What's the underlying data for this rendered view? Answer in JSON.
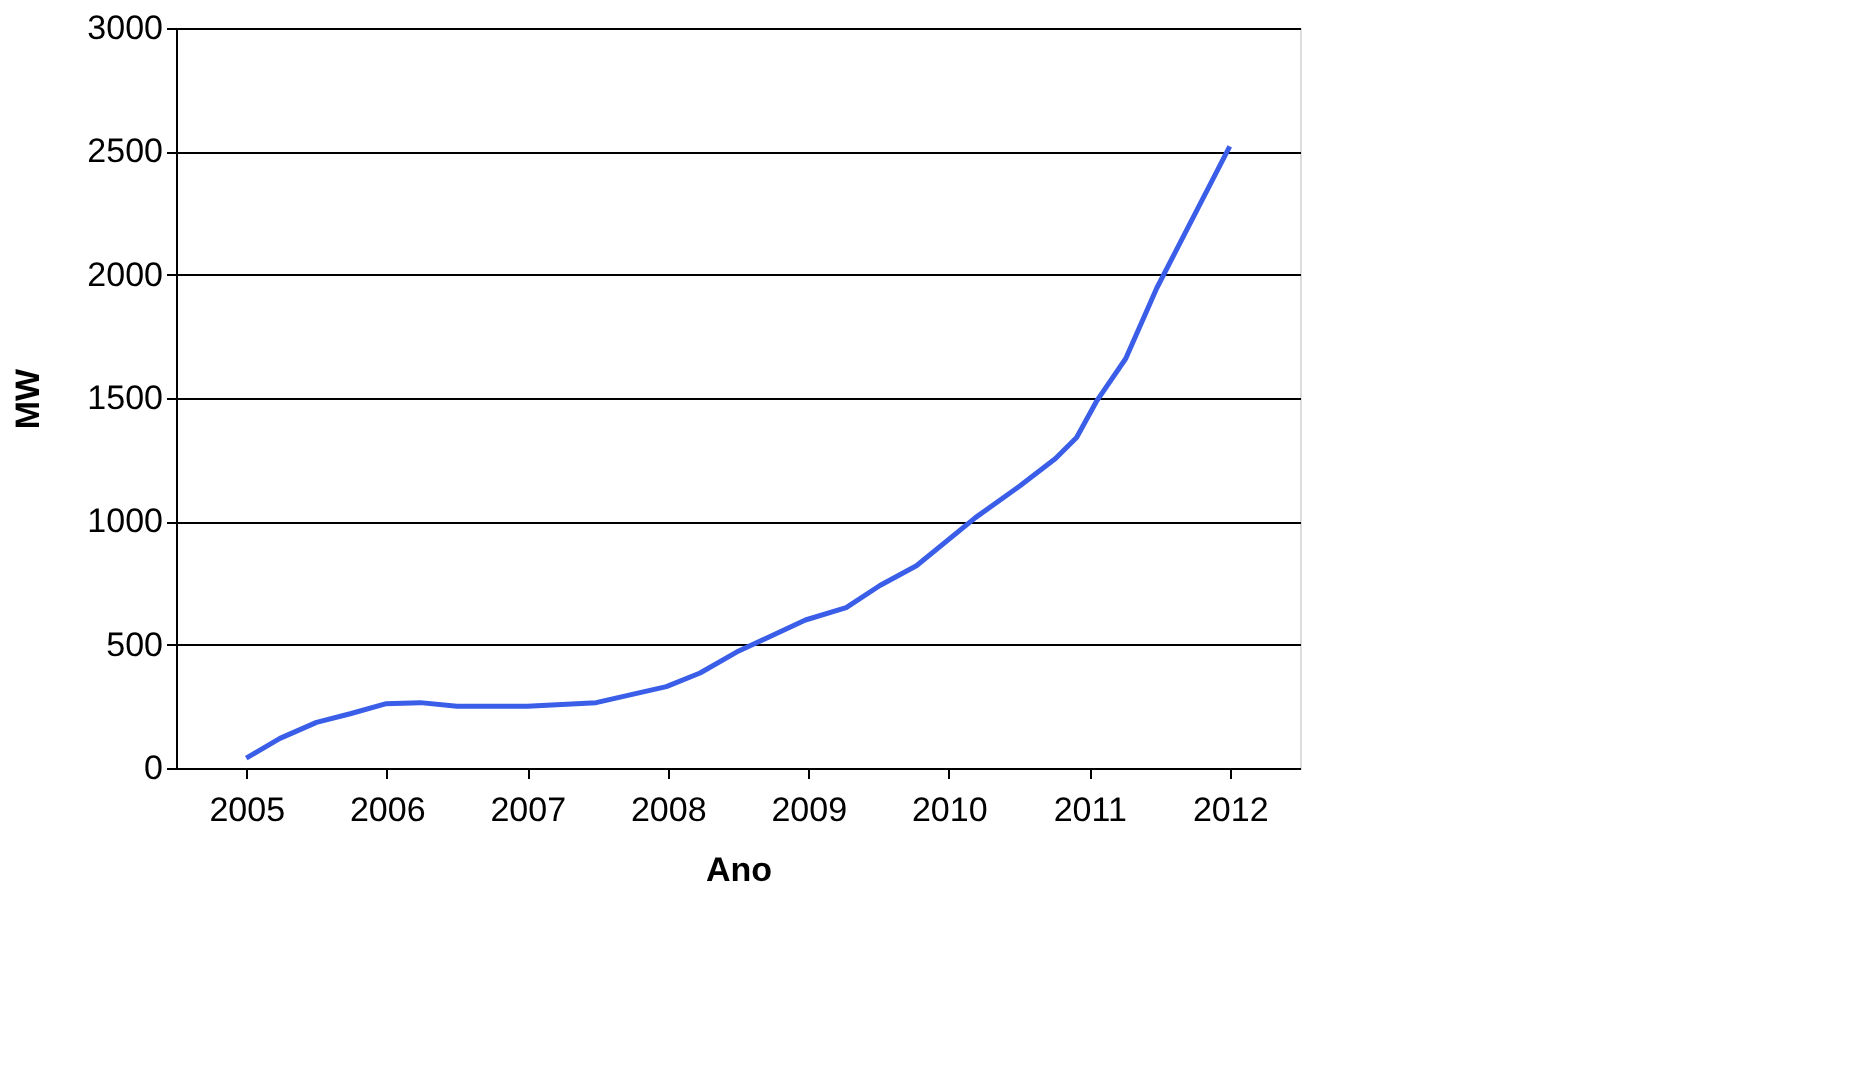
{
  "chart_data": {
    "type": "line",
    "xlabel": "Ano",
    "ylabel": "MW",
    "x": [
      2005.0,
      2005.24,
      2005.5,
      2005.74,
      2005.99,
      2006.24,
      2006.5,
      2007.0,
      2007.49,
      2007.99,
      2008.23,
      2008.49,
      2008.98,
      2009.27,
      2009.51,
      2009.77,
      2010.19,
      2010.51,
      2010.76,
      2010.91,
      2011.05,
      2011.26,
      2011.48,
      2012.0
    ],
    "series": [
      {
        "color": "#3a5ee8",
        "values": [
          40,
          120,
          185,
          220,
          260,
          265,
          250,
          250,
          265,
          330,
          385,
          470,
          600,
          650,
          740,
          820,
          1015,
          1145,
          1255,
          1340,
          1485,
          1660,
          1945,
          2520
        ]
      }
    ],
    "xlim": [
      2004.5,
      2012.5
    ],
    "xticks": [
      2005,
      2006,
      2007,
      2008,
      2009,
      2010,
      2011,
      2012
    ],
    "ylim": [
      0,
      3000
    ],
    "yticks": [
      0,
      500,
      1000,
      1500,
      2000,
      2500,
      3000
    ],
    "grid": "y",
    "marker": "none",
    "line_style": "solid"
  }
}
